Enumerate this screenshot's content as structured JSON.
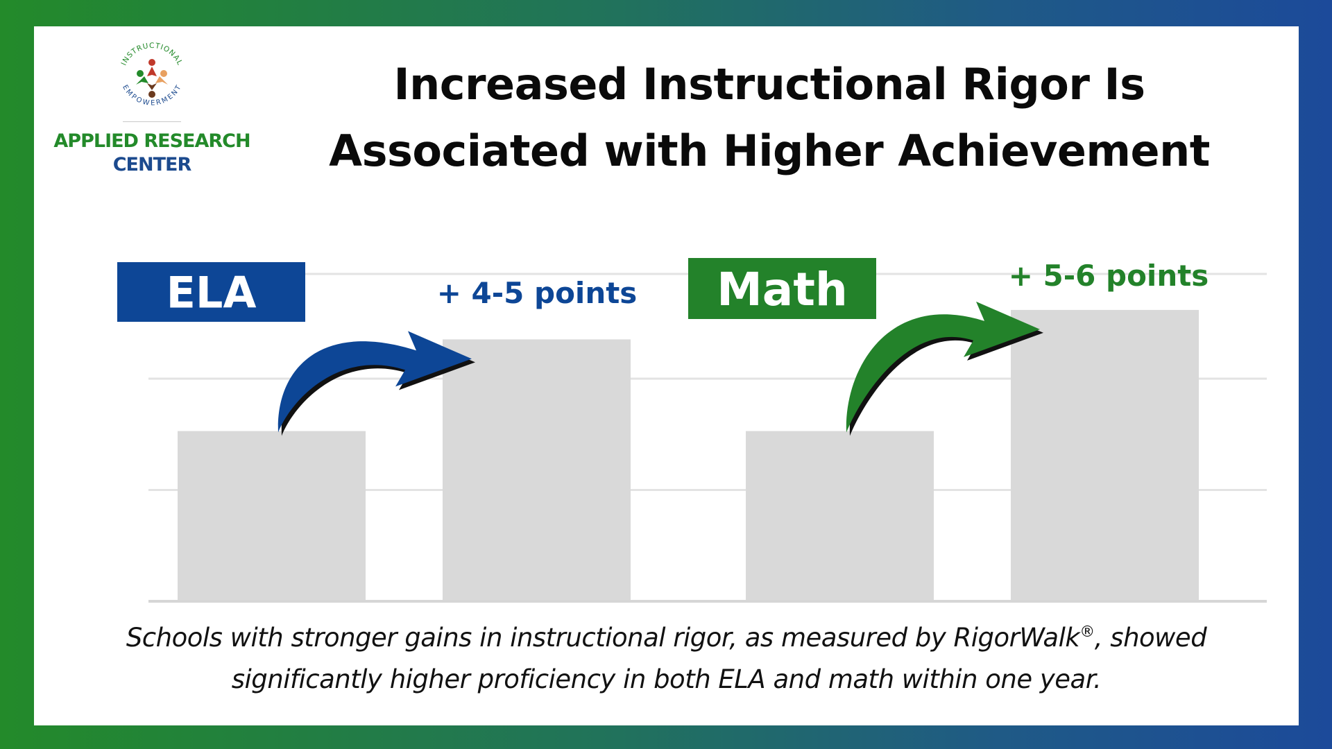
{
  "logo": {
    "ring_top": "INSTRUCTIONAL",
    "ring_bottom": "EMPOWERMENT",
    "line1": "APPLIED RESEARCH",
    "line2": "CENTER"
  },
  "title": {
    "line1": "Increased Instructional Rigor Is",
    "line2": "Associated with Higher Achievement"
  },
  "colors": {
    "ela_blue": "#0d4696",
    "math_green": "#23822a",
    "bar_gray": "#d9d9d9",
    "grid": "#e3e3e3"
  },
  "chart_data": {
    "type": "bar",
    "groups": [
      {
        "label": "ELA",
        "annotation": "+ 4-5 points",
        "color": "#0d4696",
        "values": [
          52,
          80
        ]
      },
      {
        "label": "Math",
        "annotation": "+ 5-6 points",
        "color": "#23822a",
        "values": [
          52,
          89
        ]
      }
    ],
    "ylim": [
      0,
      100
    ],
    "gridlines": [
      0,
      34,
      68,
      100
    ],
    "grid": true,
    "legend": "none"
  },
  "caption": {
    "line1_before": "Schools with stronger gains in instructional rigor, as measured by RigorWalk",
    "registered": "®",
    "line1_after": ", showed",
    "line2": "significantly higher proficiency in both ELA and math within one year."
  }
}
